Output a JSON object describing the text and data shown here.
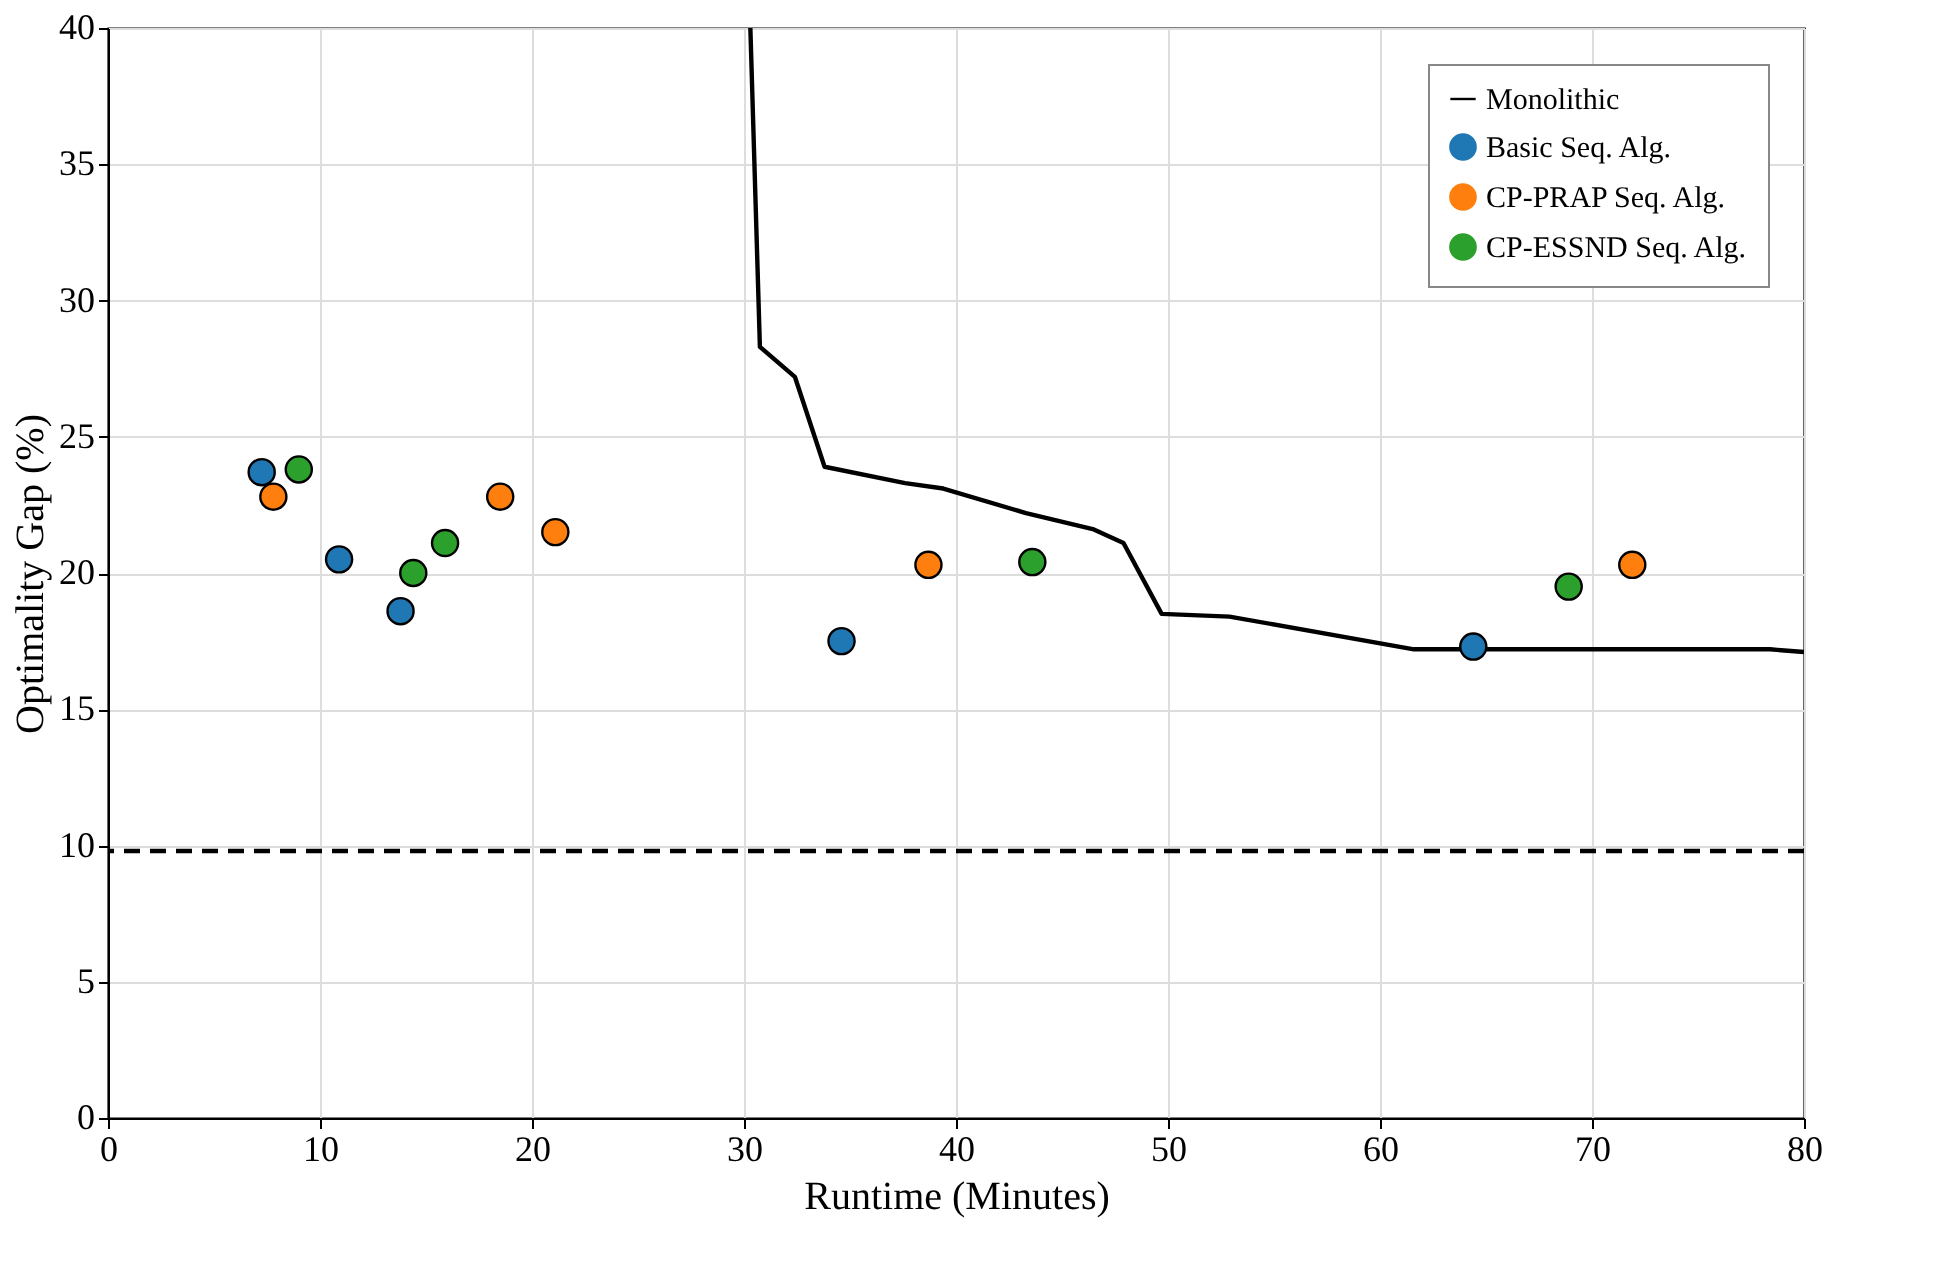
{
  "chart_data": {
    "type": "scatter",
    "xlabel": "Runtime (Minutes)",
    "ylabel": "Optimality Gap (%)",
    "xlim": [
      0,
      80
    ],
    "ylim": [
      0,
      40
    ],
    "xticks": [
      0,
      10,
      20,
      30,
      40,
      50,
      60,
      70,
      80
    ],
    "yticks": [
      0,
      5,
      10,
      15,
      20,
      25,
      30,
      35,
      40
    ],
    "grid": true,
    "legend": "top right",
    "marker": "circle",
    "series": [
      {
        "name": "Monolithic",
        "type": "line",
        "line_style": "solid",
        "marker": "none",
        "color": "#000000",
        "x": [
          30.3,
          30.75,
          32.4,
          33.8,
          37.6,
          39.4,
          43.3,
          46.5,
          47.9,
          49.7,
          52.9,
          61.6,
          78.4,
          80
        ],
        "values": [
          40,
          28.3,
          27.2,
          23.9,
          23.3,
          23.1,
          22.2,
          21.6,
          21.1,
          18.5,
          18.4,
          17.2,
          17.2,
          17.1
        ]
      },
      {
        "name": "Basic Seq. Alg.",
        "color": "#1f77b4",
        "x": [
          7.25,
          10.9,
          13.8,
          34.6,
          64.4
        ],
        "values": [
          23.7,
          20.5,
          18.6,
          17.5,
          17.3
        ]
      },
      {
        "name": "CP-PRAP Seq. Alg.",
        "color": "#ff7f0e",
        "x": [
          7.8,
          18.5,
          21.1,
          38.7,
          71.9
        ],
        "values": [
          22.8,
          22.8,
          21.5,
          20.3,
          20.3
        ]
      },
      {
        "name": "CP-ESSND Seq. Alg.",
        "color": "#2ca02c",
        "x": [
          9.0,
          14.4,
          15.9,
          43.6,
          68.9
        ],
        "values": [
          23.8,
          20.0,
          21.1,
          20.4,
          19.5
        ]
      }
    ],
    "ref_lines": [
      {
        "axis": "y",
        "value": 9.8,
        "color": "#000000",
        "line_style": "dashed"
      }
    ]
  }
}
